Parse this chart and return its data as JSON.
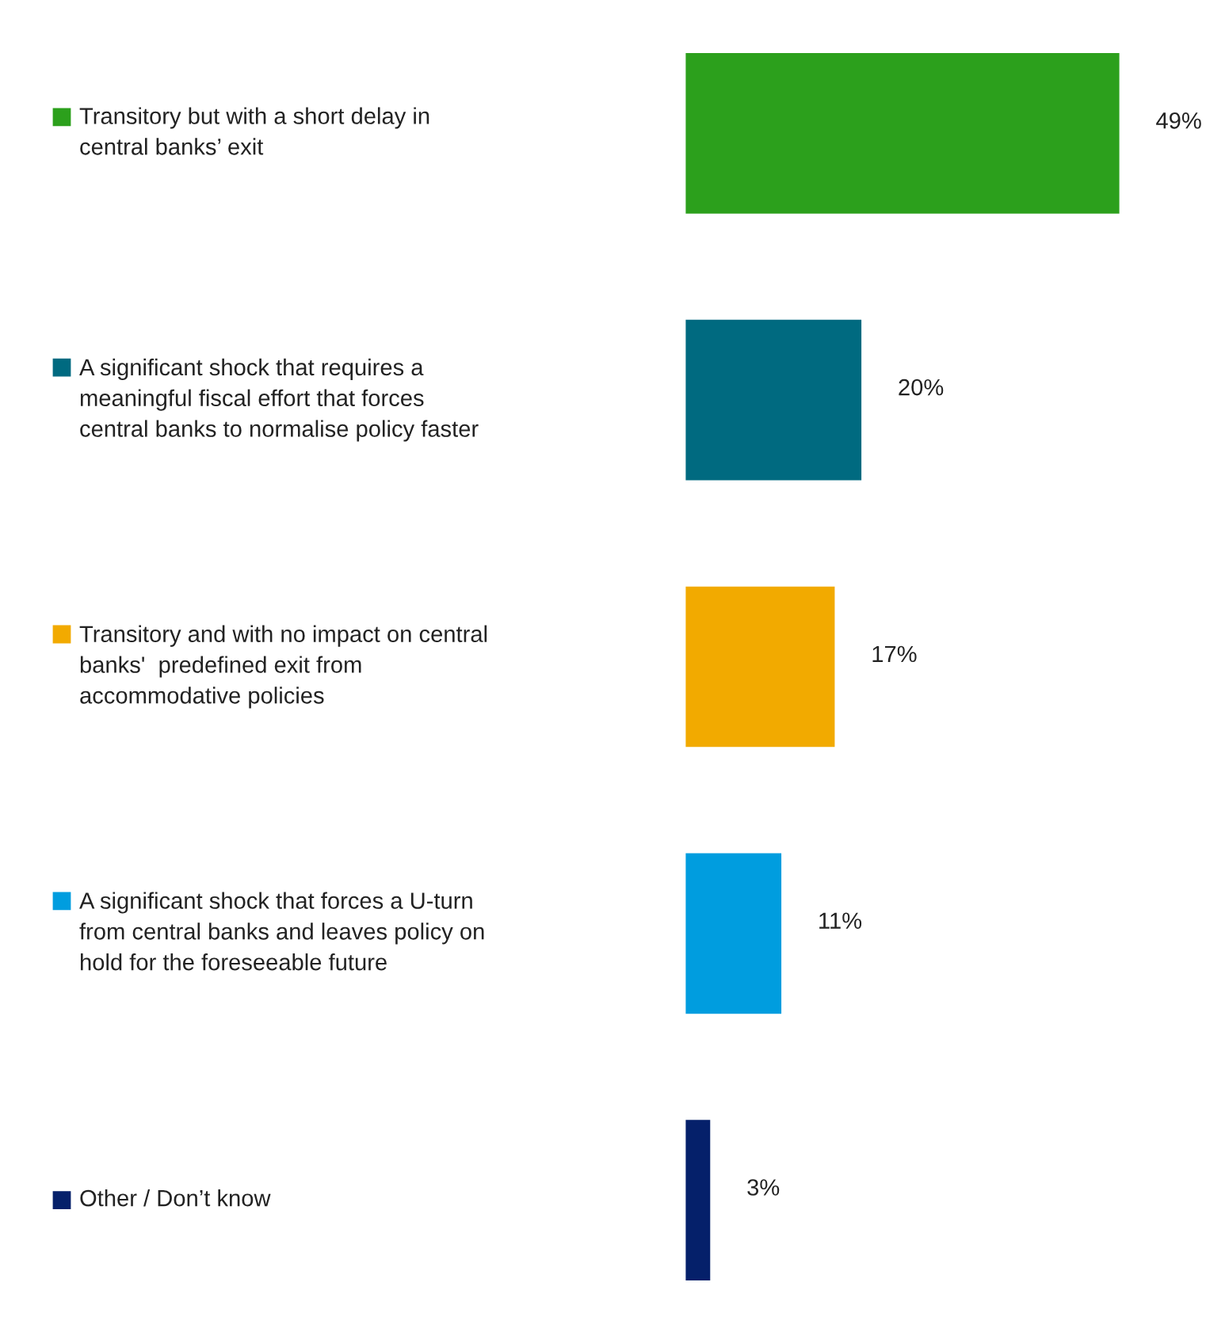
{
  "chart_data": {
    "type": "bar",
    "orientation": "horizontal",
    "categories": [
      "Transitory but with a short delay in\ncentral banks’ exit",
      "A significant shock that requires a\nmeaningful fiscal effort that forces\ncentral banks to normalise policy faster",
      "Transitory and with no impact on central\nbanks'  predefined exit from\naccommodative policies",
      "A significant shock that forces a U-turn\nfrom central banks and leaves policy on\nhold for the foreseeable future",
      "Other / Don’t know"
    ],
    "values": [
      49,
      20,
      17,
      11,
      3
    ],
    "colors": [
      "#2ca01c",
      "#006a80",
      "#f2aa00",
      "#009ddf",
      "#05206a"
    ],
    "value_labels": [
      "49%",
      "20%",
      "17%",
      "11%",
      "3%"
    ]
  }
}
